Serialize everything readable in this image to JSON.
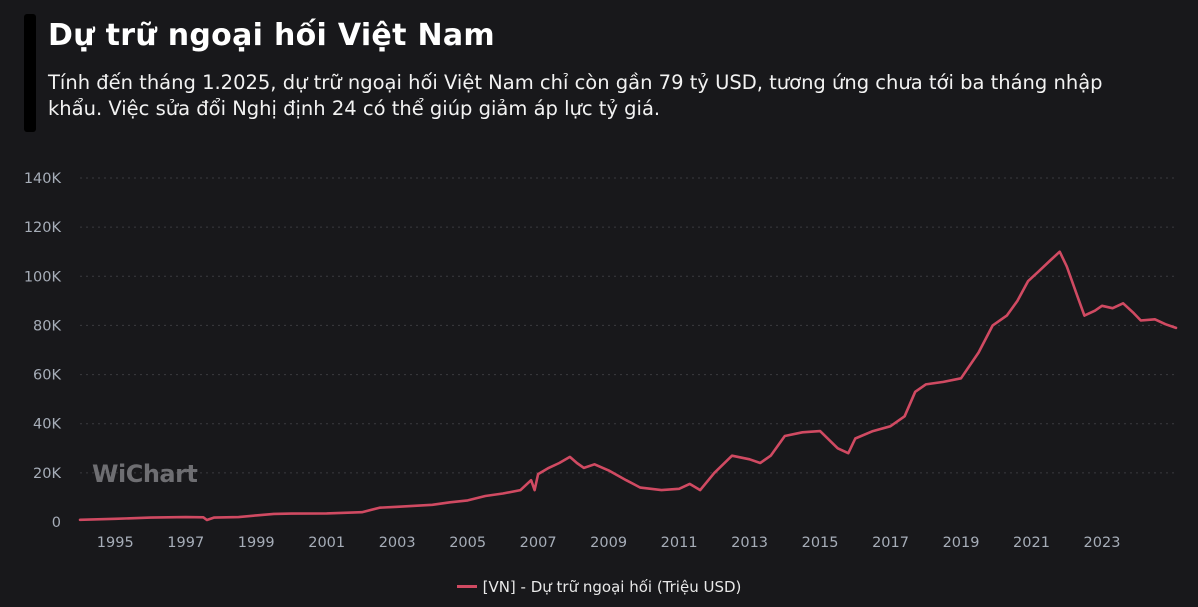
{
  "header": {
    "title": "Dự trữ ngoại hối Việt Nam",
    "subtitle": "Tính đến tháng 1.2025, dự trữ ngoại hối Việt Nam chỉ còn gần 79 tỷ USD, tương ứng chưa tới ba tháng nhập khẩu. Việc sửa đổi Nghị định 24 có thể giúp giảm áp lực tỷ giá."
  },
  "watermark": "WiChart",
  "colors": {
    "background": "#18181b",
    "series": "#d04a62",
    "grid": "#3a3a3f",
    "tick": "#a6adb8"
  },
  "chart_data": {
    "type": "line",
    "title": "Dự trữ ngoại hối Việt Nam",
    "xlabel": "",
    "ylabel": "",
    "grid": true,
    "legend_position": "bottom-center",
    "ylim": [
      0,
      140000
    ],
    "xlim": [
      1994.0,
      2025.1
    ],
    "y_ticks": [
      0,
      20000,
      40000,
      60000,
      80000,
      100000,
      120000,
      140000
    ],
    "y_tick_labels": [
      "0",
      "20K",
      "40K",
      "60K",
      "80K",
      "100K",
      "120K",
      "140K"
    ],
    "x_ticks": [
      1995,
      1997,
      1999,
      2001,
      2003,
      2005,
      2007,
      2009,
      2011,
      2013,
      2015,
      2017,
      2019,
      2021,
      2023
    ],
    "x_tick_labels": [
      "1995",
      "1997",
      "1999",
      "2001",
      "2003",
      "2005",
      "2007",
      "2009",
      "2011",
      "2013",
      "2015",
      "2017",
      "2019",
      "2021",
      "2023"
    ],
    "series": [
      {
        "name": "[VN] - Dự trữ ngoại hối (Triệu USD)",
        "points": [
          [
            1994.0,
            900
          ],
          [
            1995.0,
            1300
          ],
          [
            1996.0,
            1800
          ],
          [
            1997.0,
            2000
          ],
          [
            1997.5,
            1900
          ],
          [
            1997.6,
            800
          ],
          [
            1997.8,
            1800
          ],
          [
            1998.5,
            2000
          ],
          [
            1999.0,
            2700
          ],
          [
            1999.5,
            3300
          ],
          [
            2000.0,
            3400
          ],
          [
            2001.0,
            3500
          ],
          [
            2002.0,
            4000
          ],
          [
            2002.5,
            5800
          ],
          [
            2003.0,
            6200
          ],
          [
            2004.0,
            7000
          ],
          [
            2004.5,
            8000
          ],
          [
            2005.0,
            8800
          ],
          [
            2005.5,
            10600
          ],
          [
            2006.0,
            11600
          ],
          [
            2006.5,
            13000
          ],
          [
            2006.8,
            17000
          ],
          [
            2006.9,
            13000
          ],
          [
            2007.0,
            19500
          ],
          [
            2007.3,
            22000
          ],
          [
            2007.6,
            24000
          ],
          [
            2007.9,
            26500
          ],
          [
            2008.1,
            24000
          ],
          [
            2008.3,
            22000
          ],
          [
            2008.6,
            23500
          ],
          [
            2009.0,
            21000
          ],
          [
            2009.5,
            17000
          ],
          [
            2009.9,
            14000
          ],
          [
            2010.5,
            13000
          ],
          [
            2011.0,
            13500
          ],
          [
            2011.3,
            15500
          ],
          [
            2011.6,
            13000
          ],
          [
            2012.0,
            20000
          ],
          [
            2012.5,
            27000
          ],
          [
            2013.0,
            25500
          ],
          [
            2013.3,
            24000
          ],
          [
            2013.6,
            27000
          ],
          [
            2014.0,
            35000
          ],
          [
            2014.5,
            36500
          ],
          [
            2015.0,
            37000
          ],
          [
            2015.5,
            30000
          ],
          [
            2015.8,
            28000
          ],
          [
            2016.0,
            34000
          ],
          [
            2016.5,
            37000
          ],
          [
            2017.0,
            39000
          ],
          [
            2017.4,
            43000
          ],
          [
            2017.7,
            53000
          ],
          [
            2018.0,
            56000
          ],
          [
            2018.5,
            57000
          ],
          [
            2019.0,
            58500
          ],
          [
            2019.5,
            69000
          ],
          [
            2019.9,
            80000
          ],
          [
            2020.3,
            84000
          ],
          [
            2020.6,
            90000
          ],
          [
            2020.9,
            98000
          ],
          [
            2021.2,
            102000
          ],
          [
            2021.5,
            106000
          ],
          [
            2021.8,
            110000
          ],
          [
            2022.0,
            104000
          ],
          [
            2022.3,
            92000
          ],
          [
            2022.5,
            84000
          ],
          [
            2022.8,
            86000
          ],
          [
            2023.0,
            88000
          ],
          [
            2023.3,
            87000
          ],
          [
            2023.6,
            89000
          ],
          [
            2023.9,
            85000
          ],
          [
            2024.1,
            82000
          ],
          [
            2024.5,
            82500
          ],
          [
            2024.8,
            80500
          ],
          [
            2025.1,
            79000
          ]
        ]
      }
    ]
  }
}
